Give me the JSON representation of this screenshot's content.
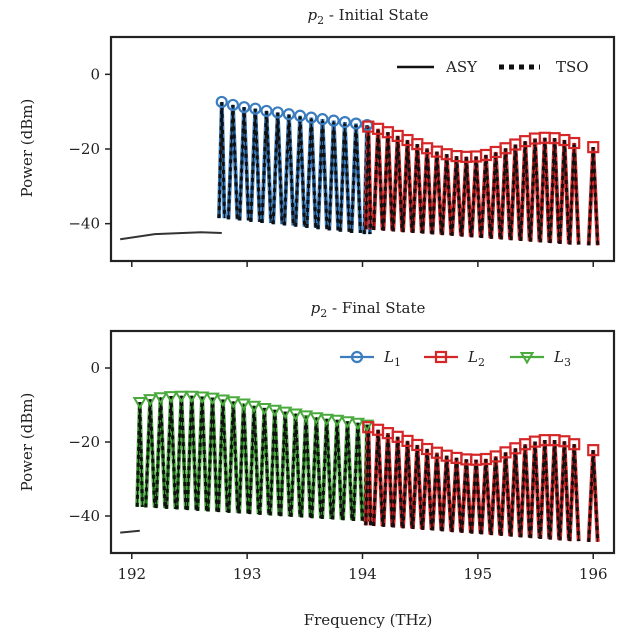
{
  "chart_data": [
    {
      "type": "line",
      "title_var": "p",
      "title_sub": "2",
      "title_rest": " - Initial State",
      "xlabel": "",
      "ylabel": "Power (dBm)",
      "xlim": [
        191.82,
        196.18
      ],
      "ylim": [
        -50,
        10
      ],
      "xticks": [
        192,
        193,
        194,
        195,
        196
      ],
      "yticks": [
        0,
        -20,
        -40
      ],
      "ytick_labels": [
        "0",
        "−20",
        "−40"
      ],
      "legend_position": "top-right",
      "legend": [
        {
          "label": "ASY",
          "style": "solid"
        },
        {
          "label": "TSO",
          "style": "dotted"
        }
      ],
      "noise_floor": {
        "x": [
          191.9,
          192.2,
          192.6,
          192.78
        ],
        "y": [
          -44.2,
          -42.8,
          -42.3,
          -42.5
        ]
      },
      "channels": {
        "freq_start": 192.78,
        "freq_end": 194.05,
        "count": 14,
        "floor_top": -38.5,
        "floor_bottom": -42.8
      },
      "channels_2": {
        "freq_start": 194.05,
        "freq_end": 196.0,
        "count": 23,
        "floor_top": -41.5,
        "floor_bottom": -45.8
      },
      "series": [
        {
          "name": "L1",
          "color": "#3b7dbf",
          "marker": "circle",
          "x": [
            192.78,
            192.877,
            192.974,
            193.071,
            193.168,
            193.265,
            193.362,
            193.459,
            193.556,
            193.653,
            193.75,
            193.847,
            193.944,
            194.04
          ],
          "y": [
            -7.4,
            -8.2,
            -8.8,
            -9.2,
            -9.8,
            -10.2,
            -10.7,
            -11.1,
            -11.6,
            -12.0,
            -12.4,
            -12.8,
            -13.2,
            -13.6
          ]
        },
        {
          "name": "L2",
          "color": "#d62728",
          "marker": "square",
          "x": [
            194.05,
            194.135,
            194.22,
            194.305,
            194.39,
            194.475,
            194.56,
            194.645,
            194.73,
            194.815,
            194.9,
            194.985,
            195.07,
            195.155,
            195.24,
            195.325,
            195.41,
            195.495,
            195.58,
            195.665,
            195.75,
            195.835,
            196.0
          ],
          "y": [
            -14.0,
            -14.6,
            -15.5,
            -16.5,
            -17.6,
            -18.7,
            -19.8,
            -20.7,
            -21.4,
            -21.9,
            -22.1,
            -22.0,
            -21.6,
            -20.8,
            -19.8,
            -18.8,
            -17.9,
            -17.2,
            -17.0,
            -17.1,
            -17.6,
            -18.4,
            -19.5
          ]
        }
      ]
    },
    {
      "type": "line",
      "title_var": "p",
      "title_sub": "2",
      "title_rest": " - Final State",
      "xlabel": "Frequency (THz)",
      "ylabel": "Power (dBm)",
      "xlim": [
        191.82,
        196.18
      ],
      "ylim": [
        -50,
        10
      ],
      "xticks": [
        192,
        193,
        194,
        195,
        196
      ],
      "yticks": [
        0,
        -20,
        -40
      ],
      "ytick_labels": [
        "0",
        "−20",
        "−40"
      ],
      "legend_position": "top-right",
      "legend": [
        {
          "label_var": "L",
          "label_sub": "1",
          "color": "#3b7dbf",
          "marker": "circle"
        },
        {
          "label_var": "L",
          "label_sub": "2",
          "color": "#d62728",
          "marker": "square"
        },
        {
          "label_var": "L",
          "label_sub": "3",
          "color": "#4aaa3e",
          "marker": "triangle-down"
        }
      ],
      "noise_floor": {
        "x": [
          191.9,
          192.0,
          192.07
        ],
        "y": [
          -44.5,
          -44.2,
          -44.0
        ]
      },
      "channels": {
        "freq_start": 192.07,
        "freq_end": 194.05,
        "count": 23,
        "floor_top": -37.5,
        "floor_bottom": -41.5
      },
      "channels_2": {
        "freq_start": 194.05,
        "freq_end": 196.0,
        "count": 23,
        "floor_top": -42.5,
        "floor_bottom": -47.0
      },
      "series": [
        {
          "name": "L3",
          "color": "#4aaa3e",
          "marker": "triangle-down",
          "x": [
            192.07,
            192.16,
            192.25,
            192.34,
            192.43,
            192.52,
            192.61,
            192.7,
            192.79,
            192.88,
            192.97,
            193.06,
            193.15,
            193.24,
            193.33,
            193.42,
            193.51,
            193.6,
            193.69,
            193.78,
            193.87,
            193.96,
            194.04
          ],
          "y": [
            -9.2,
            -8.4,
            -7.9,
            -7.6,
            -7.5,
            -7.5,
            -7.7,
            -8.0,
            -8.5,
            -9.0,
            -9.6,
            -10.2,
            -10.8,
            -11.3,
            -11.8,
            -12.3,
            -12.8,
            -13.3,
            -13.7,
            -14.0,
            -14.4,
            -14.8,
            -15.3
          ]
        },
        {
          "name": "L2",
          "color": "#d62728",
          "marker": "square",
          "x": [
            194.05,
            194.135,
            194.22,
            194.305,
            194.39,
            194.475,
            194.56,
            194.645,
            194.73,
            194.815,
            194.9,
            194.985,
            195.07,
            195.155,
            195.24,
            195.325,
            195.41,
            195.495,
            195.58,
            195.665,
            195.75,
            195.835,
            196.0
          ],
          "y": [
            -16.0,
            -16.7,
            -17.6,
            -18.6,
            -19.7,
            -20.8,
            -21.9,
            -22.9,
            -23.7,
            -24.3,
            -24.7,
            -24.8,
            -24.6,
            -23.9,
            -22.8,
            -21.7,
            -20.6,
            -19.9,
            -19.5,
            -19.5,
            -19.8,
            -20.6,
            -22.2
          ]
        }
      ]
    }
  ]
}
